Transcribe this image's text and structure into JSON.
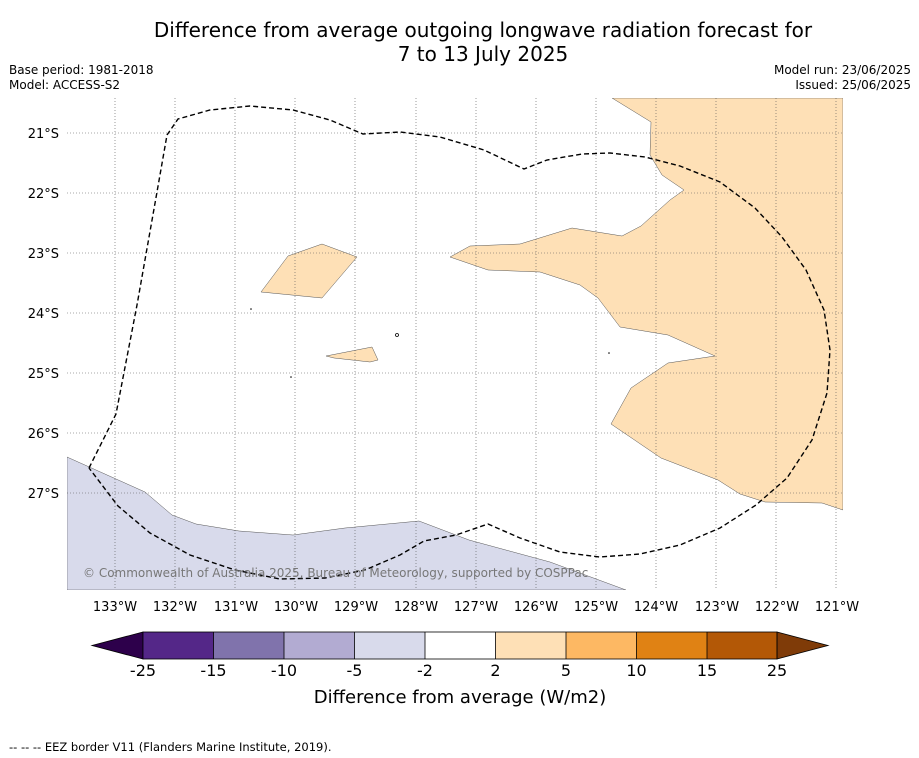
{
  "title_line1": "Difference from average outgoing longwave radiation forecast for",
  "title_line2": "7 to 13 July 2025",
  "base_period": "Base period: 1981-2018",
  "model": "Model: ACCESS-S2",
  "model_run": "Model run: 23/06/2025",
  "issued": "Issued: 25/06/2025",
  "copyright": "© Commonwealth of Australia 2025, Bureau of Meteorology, supported by COSPPac",
  "footer": "--  --  -- EEZ border V11 (Flanders Marine Institute, 2019).",
  "lon_labels": [
    "133°W",
    "132°W",
    "131°W",
    "130°W",
    "129°W",
    "128°W",
    "127°W",
    "126°W",
    "125°W",
    "124°W",
    "123°W",
    "122°W",
    "121°W"
  ],
  "lat_labels": [
    "21°S",
    "22°S",
    "23°S",
    "24°S",
    "25°S",
    "26°S",
    "27°S"
  ],
  "colorbar": {
    "label": "Difference from average (W/m2)",
    "ticks": [
      "-25",
      "-15",
      "-10",
      "-5",
      "-2",
      "2",
      "5",
      "10",
      "15",
      "25"
    ],
    "colors": {
      "under": "#2d004b",
      "c1": "#542788",
      "c2": "#8073ac",
      "c3": "#b2abd2",
      "c4": "#d8daeb",
      "c5": "#ffffff",
      "c6": "#fee0b6",
      "c7": "#fdb863",
      "c8": "#e08214",
      "c9": "#b35806",
      "over": "#7f3b08"
    }
  }
}
